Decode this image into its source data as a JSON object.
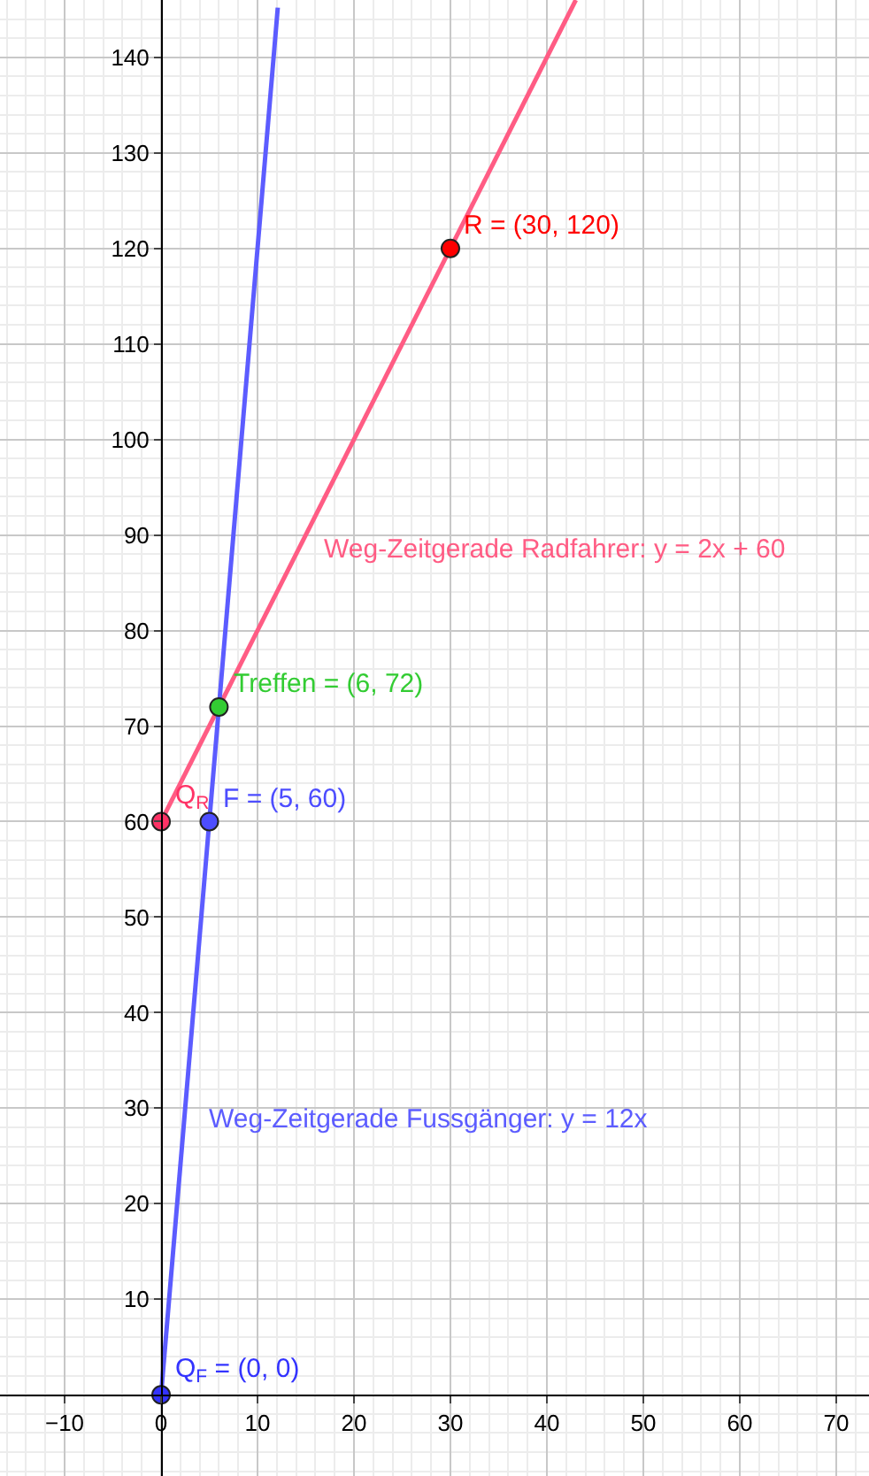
{
  "chart_data": {
    "type": "line",
    "xlim": [
      -16.7,
      73.4
    ],
    "ylim": [
      -8.5,
      146
    ],
    "xticks": [
      -10,
      0,
      10,
      20,
      30,
      40,
      50,
      60,
      70
    ],
    "yticks": [
      10,
      20,
      30,
      40,
      50,
      60,
      70,
      80,
      90,
      100,
      110,
      120,
      130,
      140
    ],
    "grid": true,
    "marker": "none",
    "line_style": "solid",
    "series": [
      {
        "color": "#ff5c84",
        "x": [
          0,
          43
        ],
        "values": [
          60,
          146
        ]
      },
      {
        "color": "#5c5cff",
        "x": [
          0,
          12.1
        ],
        "values": [
          0,
          145.2
        ]
      },
      {
        "type": "scatter",
        "marker": "circle",
        "colors": [
          "#ff3366",
          "#4d4dff",
          "#33cc33",
          "#ff0000",
          "#3333ff"
        ],
        "x": [
          0,
          5,
          6,
          30,
          0
        ],
        "values": [
          60,
          60,
          72,
          120,
          0
        ]
      }
    ],
    "annotations": [
      {
        "text": "Weg-Zeitgerade Radfahrer: y = 2x + 60",
        "x": 14.25,
        "y": 88.5
      },
      {
        "text": "Weg-Zeitgerade Fussgänger: y = 12x",
        "x": 2.4,
        "y": 28.8
      },
      {
        "text": "Q$_{R}$",
        "x": 0,
        "y": 60
      },
      {
        "text": "F = (5, 60)",
        "x": 5,
        "y": 60
      },
      {
        "text": "Treffen = (6, 72)",
        "x": 6,
        "y": 72
      },
      {
        "text": "R = (30, 120)",
        "x": 30,
        "y": 120
      },
      {
        "text": "Q$_{F}$ = (0, 0)",
        "x": 0,
        "y": 0
      }
    ]
  }
}
